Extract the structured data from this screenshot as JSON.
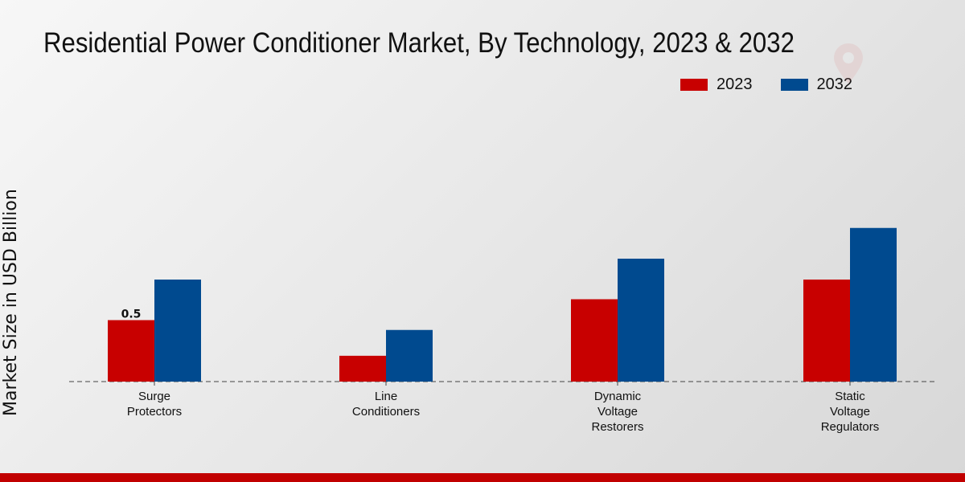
{
  "header": {
    "title": "Residential Power Conditioner Market, By Technology, 2023 & 2032"
  },
  "legend": {
    "items": [
      {
        "label": "2023",
        "color": "#c80000"
      },
      {
        "label": "2032",
        "color": "#004a8f"
      }
    ]
  },
  "chart_data": {
    "type": "bar",
    "title": "Residential Power Conditioner Market, By Technology, 2023 & 2032",
    "xlabel": "",
    "ylabel": "Market Size in USD Billion",
    "grid": false,
    "legend_position": "top-right",
    "ylim": [
      0,
      1.5
    ],
    "categories": [
      [
        "Surge",
        "Protectors"
      ],
      [
        "Line",
        "Conditioners"
      ],
      [
        "Dynamic",
        "Voltage",
        "Restorers"
      ],
      [
        "Static",
        "Voltage",
        "Regulators"
      ]
    ],
    "series": [
      {
        "name": "2023",
        "color": "#c80000",
        "values": [
          0.5,
          0.21,
          0.67,
          0.83
        ]
      },
      {
        "name": "2032",
        "color": "#004a8f",
        "values": [
          0.83,
          0.42,
          1.0,
          1.25
        ]
      }
    ],
    "data_labels": [
      {
        "series": 0,
        "index": 0,
        "text": "0.5"
      }
    ]
  }
}
